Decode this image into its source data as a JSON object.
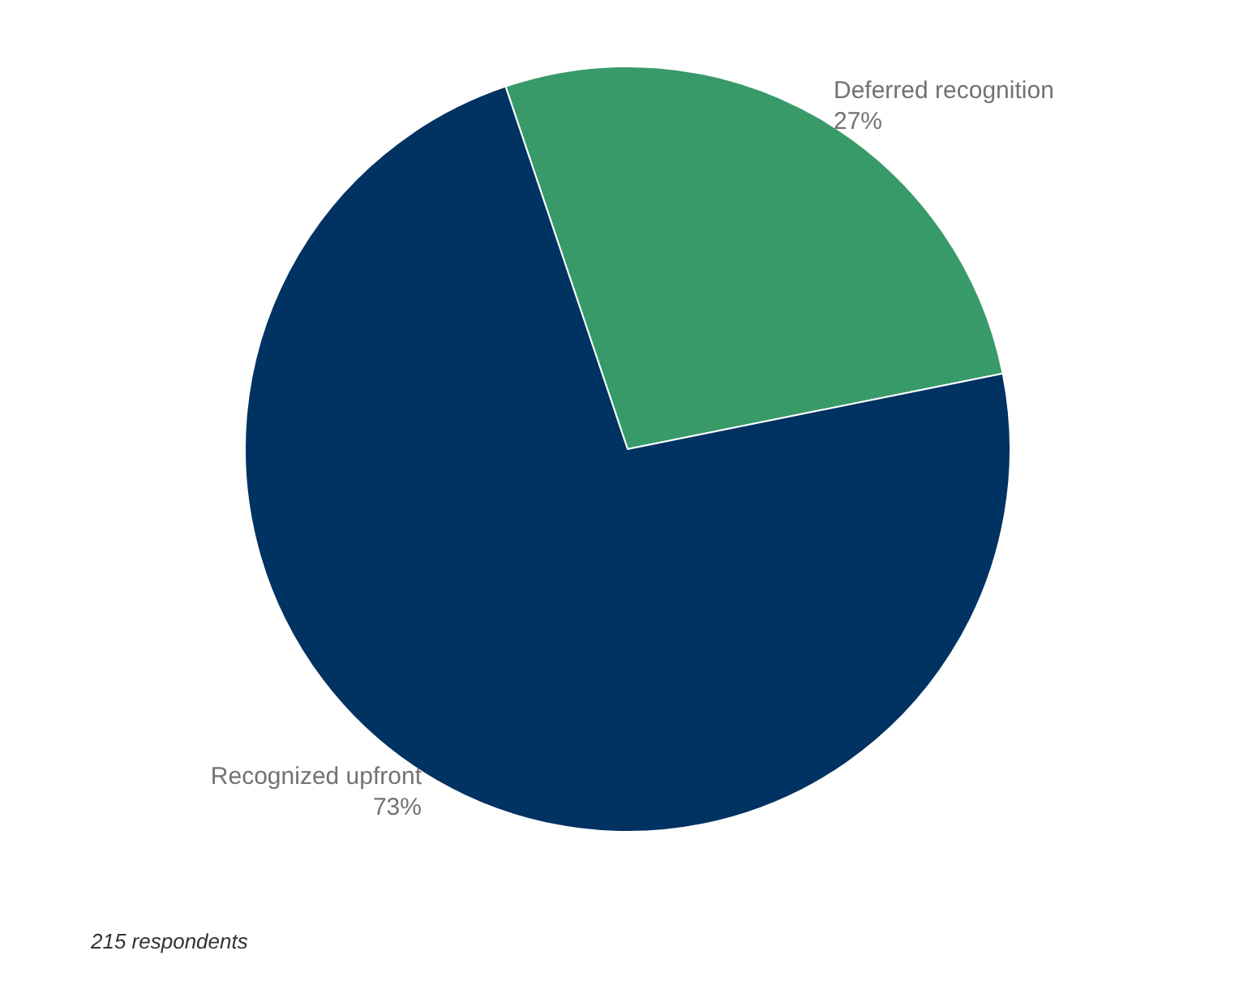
{
  "chart_data": {
    "type": "pie",
    "categories": [
      "Deferred recognition",
      "Recognized upfront"
    ],
    "values": [
      27,
      73
    ],
    "colors": [
      "#379a68",
      "#003262"
    ],
    "value_labels": [
      "27%",
      "73%"
    ],
    "annotations": [
      "215 respondents"
    ],
    "legend": false
  }
}
